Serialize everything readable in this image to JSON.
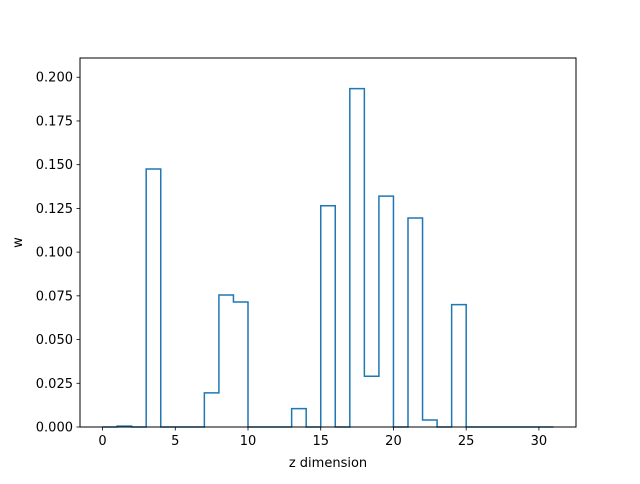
{
  "chart_data": {
    "type": "bar",
    "style": "step-histogram",
    "title": "",
    "xlabel": "z dimension",
    "ylabel": "w",
    "xlim": [
      -1.55,
      32.55
    ],
    "ylim": [
      0.0,
      0.211
    ],
    "x_ticks": [
      0,
      5,
      10,
      15,
      20,
      25,
      30
    ],
    "y_ticks": [
      0.0,
      0.025,
      0.05,
      0.075,
      0.1,
      0.125,
      0.15,
      0.175,
      0.2
    ],
    "x_tick_labels": [
      "0",
      "5",
      "10",
      "15",
      "20",
      "25",
      "30"
    ],
    "y_tick_labels": [
      "0.000",
      "0.025",
      "0.050",
      "0.075",
      "0.100",
      "0.125",
      "0.150",
      "0.175",
      "0.200"
    ],
    "grid": false,
    "legend": "none",
    "line_color": "#1f77b4",
    "bin_edges": [
      0,
      1,
      2,
      3,
      4,
      5,
      6,
      7,
      8,
      9,
      10,
      11,
      12,
      13,
      14,
      15,
      16,
      17,
      18,
      19,
      20,
      21,
      22,
      23,
      24,
      25,
      26,
      27,
      28,
      29,
      30,
      31
    ],
    "values": [
      0.0,
      0.0005,
      0.0,
      0.1475,
      0.0,
      0.0,
      0.0,
      0.0195,
      0.0755,
      0.0715,
      0.0,
      0.0,
      0.0,
      0.0105,
      0.0,
      0.1265,
      0.0,
      0.1935,
      0.029,
      0.132,
      0.0,
      0.1195,
      0.004,
      0.0,
      0.07,
      0.0,
      0.0,
      0.0,
      0.0,
      0.0,
      0.0
    ]
  }
}
